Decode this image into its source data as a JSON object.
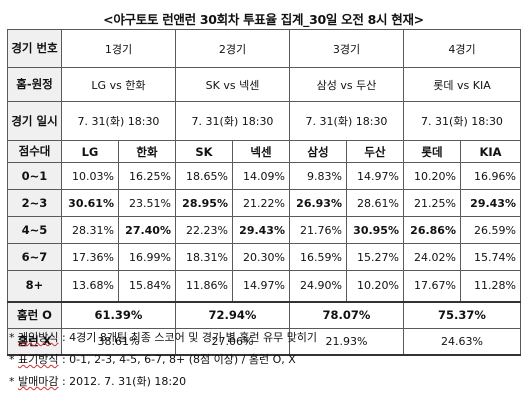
{
  "title": "<야구토토 런앤런 30회차 투표율 집계_30일 오전 8시 현재>",
  "header": {
    "game_no_label": "경기 번호",
    "home_away_label": "홈-원정",
    "game_time_label": "경기 일시",
    "score_band_label": "점수대",
    "run_o_label": "홈런 O",
    "run_x_label": "홈런 X"
  },
  "games": [
    {
      "no": "1경기",
      "matchup": "LG vs 한화",
      "time": "7. 31(화) 18:30",
      "home": "LG",
      "away": "한화",
      "run_o": "61.39%",
      "run_x": "38.61%"
    },
    {
      "no": "2경기",
      "matchup": "SK vs 넥센",
      "time": "7. 31(화) 18:30",
      "home": "SK",
      "away": "넥센",
      "run_o": "72.94%",
      "run_x": "27.06%"
    },
    {
      "no": "3경기",
      "matchup": "삼성 vs 두산",
      "time": "7. 31(화) 18:30",
      "home": "삼성",
      "away": "두산",
      "run_o": "78.07%",
      "run_x": "21.93%"
    },
    {
      "no": "4경기",
      "matchup": "롯데 vs KIA",
      "time": "7. 31(화) 18:30",
      "home": "롯데",
      "away": "KIA",
      "run_o": "75.37%",
      "run_x": "24.63%"
    }
  ],
  "rows": [
    {
      "band": "0~1",
      "values": [
        "10.03%",
        "16.25%",
        "18.65%",
        "14.09%",
        "9.83%",
        "14.97%",
        "10.20%",
        "16.96%"
      ],
      "bold": [
        false,
        false,
        false,
        false,
        false,
        false,
        false,
        false
      ]
    },
    {
      "band": "2~3",
      "values": [
        "30.61%",
        "23.51%",
        "28.95%",
        "21.22%",
        "26.93%",
        "28.61%",
        "21.25%",
        "29.43%"
      ],
      "bold": [
        true,
        false,
        true,
        false,
        true,
        false,
        false,
        true
      ]
    },
    {
      "band": "4~5",
      "values": [
        "28.31%",
        "27.40%",
        "22.23%",
        "29.43%",
        "21.76%",
        "30.95%",
        "26.86%",
        "26.59%"
      ],
      "bold": [
        false,
        true,
        false,
        true,
        false,
        true,
        true,
        false
      ]
    },
    {
      "band": "6~7",
      "values": [
        "17.36%",
        "16.99%",
        "18.31%",
        "20.30%",
        "16.59%",
        "15.27%",
        "24.02%",
        "15.74%"
      ],
      "bold": [
        false,
        false,
        false,
        false,
        false,
        false,
        false,
        false
      ]
    },
    {
      "band": "8+",
      "values": [
        "13.68%",
        "15.84%",
        "11.86%",
        "14.97%",
        "24.90%",
        "10.20%",
        "17.67%",
        "11.28%"
      ],
      "bold": [
        false,
        false,
        false,
        false,
        false,
        false,
        false,
        false
      ]
    }
  ],
  "notes": [
    {
      "label": "게임방식",
      "text": ": 4경기 8개팀 최종 스코어 및 경기 별 홈런 유무 맞히기"
    },
    {
      "label": "표기방식",
      "text": ": 0-1, 2-3, 4-5, 6-7, 8+ (8점 이상) / 홈런 O, X"
    },
    {
      "label": "발매마감",
      "text": ": 2012. 7. 31(화) 18:20"
    }
  ]
}
